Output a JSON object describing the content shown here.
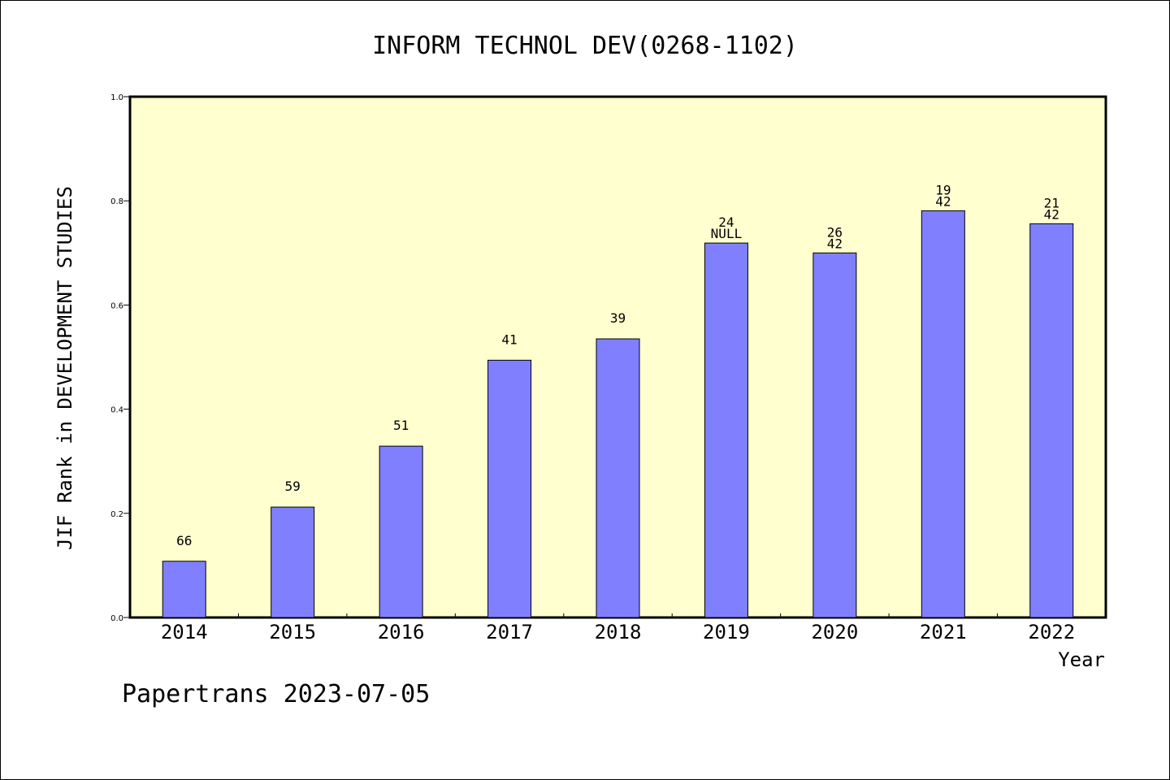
{
  "chart_data": {
    "type": "bar",
    "title": "INFORM TECHNOL DEV(0268-1102)",
    "ylabel": "JIF Rank in DEVELOPMENT STUDIES",
    "xlabel": "Year",
    "ylim": [
      0,
      1.0
    ],
    "yticks": [
      "0.0",
      "0.2",
      "0.4",
      "0.6",
      "0.8",
      "1.0"
    ],
    "categories": [
      "2014",
      "2015",
      "2016",
      "2017",
      "2018",
      "2019",
      "2020",
      "2021",
      "2022"
    ],
    "values": [
      0.108,
      0.212,
      0.329,
      0.494,
      0.535,
      0.719,
      0.7,
      0.781,
      0.756
    ],
    "labels": [
      [
        "66"
      ],
      [
        "59"
      ],
      [
        "51"
      ],
      [
        "41"
      ],
      [
        "39"
      ],
      [
        "24",
        "NULL"
      ],
      [
        "26",
        "42"
      ],
      [
        "19",
        "42"
      ],
      [
        "21",
        "42"
      ]
    ],
    "bar_color": "#8080ff",
    "plot_background": "#ffffd0",
    "grid": false,
    "footer": "Papertrans 2023-07-05"
  }
}
